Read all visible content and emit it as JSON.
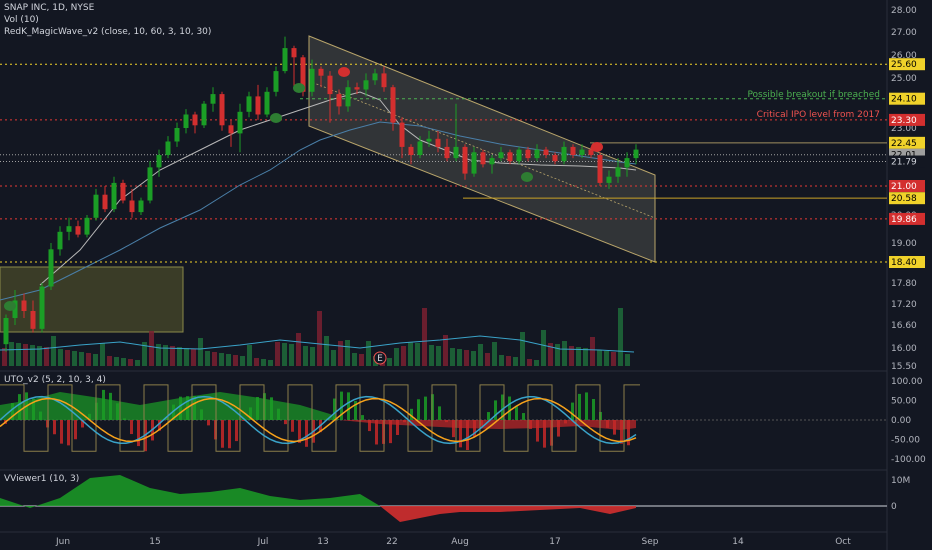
{
  "header": {
    "symbol_line": "SNAP INC, 1D, NYSE",
    "vol_line": "Vol (10)",
    "magicwave_line": "RedK_MagicWave_v2 (close, 10, 60, 3, 10, 30)",
    "uto_line": "UTO_v2 (5, 2, 10, 3, 4)",
    "vviewer_line": "VViewer1 (10, 3)"
  },
  "colors": {
    "background": "#131722",
    "up": "#26a69a",
    "down": "#ef5350",
    "bright_green": "#1b9e26",
    "bright_red": "#d32f2f",
    "orange": "#f7a21b",
    "yellow": "#f0d22a",
    "channel_fill": "#6b6a5f"
  },
  "x_axis": {
    "ticks": [
      "Jun",
      "15",
      "Jul",
      "13",
      "22",
      "Aug",
      "17",
      "Sep",
      "14",
      "Oct"
    ]
  },
  "price_axis": {
    "ticks": [
      "28.00",
      "27.00",
      "26.00",
      "25.00",
      "24.00",
      "23.00",
      "22.00",
      "21.00",
      "20.00",
      "19.00",
      "18.40",
      "17.80",
      "17.20",
      "16.60",
      "16.00",
      "15.50"
    ],
    "level_labels": {
      "l2560": "25.60",
      "l2410": "24.10",
      "l2330": "23.30",
      "l2245": "22.45",
      "l2201": "22.01",
      "l2179": "21.79",
      "l2100": "21.00",
      "l2058": "20.58",
      "l1986": "19.86",
      "l1840": "18.40"
    },
    "annotations": {
      "breakout": "Possible breakout if breached",
      "ipo": "Critical IPO level from 2017"
    },
    "earnings_marker": "E"
  },
  "uto_axis": {
    "ticks": [
      "100.00",
      "50.00",
      "0.00",
      "-50.00",
      "-100.00"
    ]
  },
  "vviewer_axis": {
    "ticks": [
      "10M",
      "0"
    ]
  },
  "chart_data": {
    "type": "candlestick",
    "ylim": [
      15.5,
      28.0
    ],
    "candles": [
      [
        16.1,
        16.9,
        15.9,
        16.8
      ],
      [
        16.8,
        17.6,
        16.6,
        17.3
      ],
      [
        17.3,
        17.5,
        16.8,
        17.0
      ],
      [
        17.0,
        17.3,
        16.4,
        16.5
      ],
      [
        16.5,
        17.8,
        16.4,
        17.7
      ],
      [
        17.7,
        19.0,
        17.6,
        18.8
      ],
      [
        18.8,
        19.6,
        18.6,
        19.4
      ],
      [
        19.4,
        19.9,
        19.1,
        19.6
      ],
      [
        19.6,
        19.8,
        19.2,
        19.3
      ],
      [
        19.3,
        20.0,
        19.2,
        19.9
      ],
      [
        19.9,
        20.9,
        19.8,
        20.7
      ],
      [
        20.7,
        21.0,
        20.1,
        20.2
      ],
      [
        20.2,
        21.3,
        20.1,
        21.1
      ],
      [
        21.1,
        21.2,
        20.4,
        20.5
      ],
      [
        20.5,
        20.9,
        19.9,
        20.1
      ],
      [
        20.1,
        20.6,
        20.0,
        20.5
      ],
      [
        20.5,
        21.8,
        20.4,
        21.6
      ],
      [
        21.6,
        22.2,
        21.3,
        22.0
      ],
      [
        22.0,
        22.7,
        21.9,
        22.5
      ],
      [
        22.5,
        23.2,
        22.3,
        23.0
      ],
      [
        23.0,
        23.7,
        22.8,
        23.5
      ],
      [
        23.5,
        23.6,
        22.8,
        23.1
      ],
      [
        23.1,
        24.0,
        23.0,
        23.9
      ],
      [
        23.9,
        24.6,
        23.6,
        24.3
      ],
      [
        24.3,
        24.4,
        22.9,
        23.1
      ],
      [
        23.1,
        23.3,
        22.3,
        22.8
      ],
      [
        22.8,
        23.9,
        22.1,
        23.6
      ],
      [
        23.6,
        24.4,
        23.4,
        24.2
      ],
      [
        24.2,
        24.7,
        23.3,
        23.5
      ],
      [
        23.5,
        24.6,
        23.4,
        24.4
      ],
      [
        24.4,
        25.5,
        24.2,
        25.3
      ],
      [
        25.3,
        26.8,
        25.2,
        26.3
      ],
      [
        26.3,
        26.4,
        24.6,
        25.9
      ],
      [
        25.9,
        26.0,
        24.2,
        24.4
      ],
      [
        24.4,
        25.8,
        24.2,
        25.4
      ],
      [
        25.4,
        25.5,
        24.6,
        25.1
      ],
      [
        25.1,
        25.3,
        23.2,
        24.3
      ],
      [
        24.3,
        24.5,
        23.5,
        23.8
      ],
      [
        23.8,
        24.9,
        23.6,
        24.6
      ],
      [
        24.6,
        24.8,
        24.3,
        24.5
      ],
      [
        24.5,
        25.2,
        24.2,
        24.9
      ],
      [
        24.9,
        25.4,
        24.7,
        25.2
      ],
      [
        25.2,
        25.5,
        24.4,
        24.6
      ],
      [
        24.6,
        24.7,
        22.9,
        23.2
      ],
      [
        23.2,
        23.4,
        21.9,
        22.3
      ],
      [
        22.3,
        22.4,
        21.7,
        22.0
      ],
      [
        22.0,
        22.7,
        21.9,
        22.5
      ],
      [
        22.5,
        22.9,
        22.3,
        22.6
      ],
      [
        22.6,
        22.9,
        22.1,
        22.3
      ],
      [
        22.3,
        22.6,
        21.8,
        21.9
      ],
      [
        21.9,
        23.9,
        21.8,
        22.3
      ],
      [
        22.3,
        22.4,
        21.2,
        21.4
      ],
      [
        21.4,
        22.3,
        21.3,
        22.1
      ],
      [
        22.1,
        22.2,
        21.6,
        21.7
      ],
      [
        21.7,
        22.0,
        21.4,
        21.9
      ],
      [
        21.9,
        22.3,
        21.8,
        22.1
      ],
      [
        22.1,
        22.2,
        21.7,
        21.8
      ],
      [
        21.8,
        22.3,
        21.7,
        22.2
      ],
      [
        22.2,
        22.3,
        21.8,
        21.9
      ],
      [
        21.9,
        22.4,
        21.8,
        22.2
      ],
      [
        22.2,
        22.3,
        21.9,
        22.0
      ],
      [
        22.0,
        22.1,
        21.7,
        21.8
      ],
      [
        21.8,
        22.5,
        21.7,
        22.3
      ],
      [
        22.3,
        22.4,
        21.9,
        22.0
      ],
      [
        22.0,
        22.4,
        21.9,
        22.2
      ],
      [
        22.2,
        22.3,
        21.9,
        22.0
      ],
      [
        22.0,
        22.1,
        21.0,
        21.1
      ],
      [
        21.1,
        21.5,
        20.9,
        21.3
      ],
      [
        21.3,
        21.9,
        21.1,
        21.6
      ],
      [
        21.6,
        22.1,
        21.3,
        21.9
      ],
      [
        21.9,
        22.4,
        21.7,
        22.2
      ]
    ]
  }
}
